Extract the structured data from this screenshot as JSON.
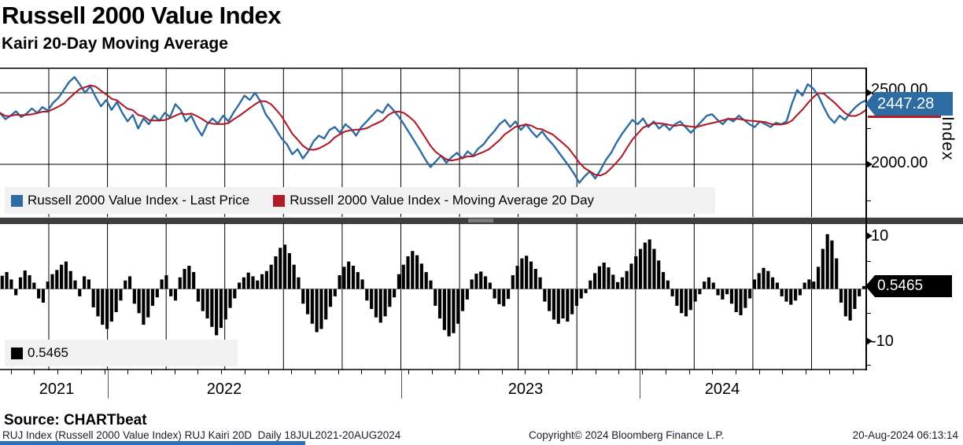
{
  "title": "Russell 2000 Value Index",
  "subtitle": "Kairi 20-Day Moving Average",
  "top_panel": {
    "axis_title": "Index",
    "ytick_labels": [
      "2500.00",
      "2000.00"
    ],
    "price_badge": "2447.28",
    "legend": [
      {
        "label": "Russell 2000 Value Index - Last Price",
        "color": "#2d6ba3"
      },
      {
        "label": "Russell 2000 Value Index - Moving Average 20 Day",
        "color": "#b01b2a"
      }
    ]
  },
  "bottom_panel": {
    "ytick_labels": [
      "10",
      "-10"
    ],
    "value_badge": "0.5465",
    "legend": [
      {
        "label": "0.5465",
        "color": "#000000"
      }
    ]
  },
  "x_axis": {
    "year_labels": [
      "2021",
      "2022",
      "2023",
      "2024"
    ]
  },
  "footer": {
    "source": "Source: CHARTbeat",
    "detail_left": "RUJ Index (Russell 2000 Value Index) RUJ Kairi 20D  Daily 18JUL2021-20AUG2024",
    "copyright": "Copyright© 2024 Bloomberg Finance L.P.",
    "timestamp": "20-Aug-2024 06:13:14"
  },
  "chart_data": [
    {
      "type": "line",
      "title": "Russell 2000 Value Index",
      "x_range": "18JUL2021-20AUG2024",
      "frequency": "Daily",
      "ylim": [
        1632,
        2676
      ],
      "yticks": [
        2000,
        2500
      ],
      "last_price": 2447.28,
      "grid": true,
      "legend_position": "bottom-left",
      "series": [
        {
          "name": "Russell 2000 Value Index - Last Price",
          "color": "#2d6ba3",
          "values": [
            2360,
            2315,
            2340,
            2370,
            2330,
            2355,
            2390,
            2360,
            2400,
            2375,
            2430,
            2465,
            2520,
            2575,
            2610,
            2560,
            2500,
            2545,
            2470,
            2405,
            2450,
            2380,
            2435,
            2360,
            2300,
            2345,
            2250,
            2320,
            2280,
            2340,
            2305,
            2360,
            2330,
            2420,
            2380,
            2300,
            2340,
            2260,
            2200,
            2280,
            2320,
            2285,
            2340,
            2300,
            2365,
            2420,
            2480,
            2450,
            2500,
            2440,
            2350,
            2300,
            2240,
            2180,
            2140,
            2070,
            2105,
            2040,
            2090,
            2160,
            2200,
            2180,
            2240,
            2260,
            2220,
            2280,
            2250,
            2200,
            2260,
            2300,
            2340,
            2380,
            2360,
            2420,
            2380,
            2335,
            2280,
            2220,
            2160,
            2100,
            2035,
            1980,
            2020,
            2060,
            2010,
            2050,
            2080,
            2040,
            2090,
            2060,
            2110,
            2140,
            2190,
            2230,
            2280,
            2310,
            2260,
            2300,
            2240,
            2280,
            2230,
            2190,
            2230,
            2180,
            2140,
            2090,
            2040,
            1990,
            1935,
            1870,
            1915,
            1950,
            1900,
            1960,
            2030,
            2080,
            2150,
            2210,
            2260,
            2310,
            2280,
            2320,
            2260,
            2300,
            2250,
            2280,
            2240,
            2280,
            2300,
            2260,
            2220,
            2260,
            2300,
            2340,
            2350,
            2310,
            2280,
            2320,
            2300,
            2340,
            2310,
            2280,
            2260,
            2300,
            2280,
            2260,
            2290,
            2280,
            2300,
            2420,
            2520,
            2480,
            2560,
            2530,
            2480,
            2400,
            2330,
            2290,
            2340,
            2310,
            2360,
            2400,
            2430,
            2447.28
          ]
        },
        {
          "name": "Russell 2000 Value Index - Moving Average 20 Day",
          "color": "#b01b2a",
          "derived": "20-day moving average of Last Price"
        }
      ]
    },
    {
      "type": "bar",
      "title": "Kairi 20-Day Moving Average",
      "ylim": [
        -16.5,
        12.5
      ],
      "yticks": [
        -10,
        10
      ],
      "last_value": 0.5465,
      "color": "#000000",
      "grid": true,
      "values": [
        2.5,
        3.2,
        1.8,
        -1.2,
        2.2,
        3.5,
        2.6,
        1.2,
        -1.8,
        -2.6,
        1.4,
        2.8,
        3.6,
        4.6,
        5.2,
        3.4,
        1.6,
        -1.4,
        2.4,
        1.8,
        -3.5,
        -5.2,
        -6.8,
        -7.6,
        -6.2,
        -4.4,
        -2.2,
        1.6,
        2.4,
        -2.8,
        -4.6,
        -6.8,
        -5.4,
        -3.2,
        -1.6,
        1.8,
        2.6,
        -1.4,
        -2.2,
        2.2,
        3.8,
        4.4,
        3.2,
        -2.4,
        -4.2,
        -5.6,
        -7.2,
        -8.8,
        -7.4,
        -5.8,
        -3.6,
        -1.8,
        1.2,
        2.2,
        3.1,
        2.4,
        1.6,
        2.8,
        3.4,
        4.6,
        6.2,
        7.8,
        8.4,
        6.8,
        4.6,
        2.2,
        -2.8,
        -4.8,
        -6.6,
        -8.2,
        -7.6,
        -5.8,
        -3.4,
        -1.4,
        2.6,
        4.2,
        5.2,
        4.4,
        3.2,
        1.8,
        -2.2,
        -3.8,
        -5.4,
        -6.4,
        -5.2,
        -3.4,
        -1.6,
        2.8,
        4.6,
        6.2,
        7.2,
        6.4,
        4.8,
        3.2,
        1.6,
        -3.2,
        -5.6,
        -7.8,
        -9.0,
        -8.4,
        -6.6,
        -4.2,
        -2.0,
        1.8,
        2.9,
        3.3,
        2.4,
        1.2,
        -1.8,
        -2.9,
        -3.3,
        -1.9,
        2.6,
        4.4,
        5.8,
        6.3,
        5.2,
        3.8,
        2.2,
        -2.4,
        -4.2,
        -5.8,
        -6.6,
        -5.6,
        -6.2,
        -4.8,
        -3.2,
        -1.8,
        -0.8,
        1.6,
        3.0,
        4.3,
        5.0,
        4.1,
        2.7,
        1.3,
        2.2,
        3.4,
        4.8,
        6.2,
        7.6,
        8.8,
        9.4,
        7.6,
        5.4,
        3.2,
        1.6,
        -1.4,
        -3.2,
        -4.6,
        -5.2,
        -4.0,
        -2.4,
        -1.0,
        1.4,
        2.2,
        1.2,
        -1.2,
        -2.0,
        -1.0,
        -2.8,
        -4.4,
        -5.0,
        -3.6,
        -1.8,
        1.8,
        3.0,
        4.0,
        3.4,
        2.2,
        1.2,
        -1.4,
        -2.4,
        -3.0,
        -2.2,
        -1.2,
        1.2,
        1.8,
        1.4,
        4.2,
        7.6,
        10.4,
        9.2,
        5.8,
        -2.6,
        -5.2,
        -6.0,
        -3.8,
        -1.4,
        0.5465
      ]
    }
  ]
}
